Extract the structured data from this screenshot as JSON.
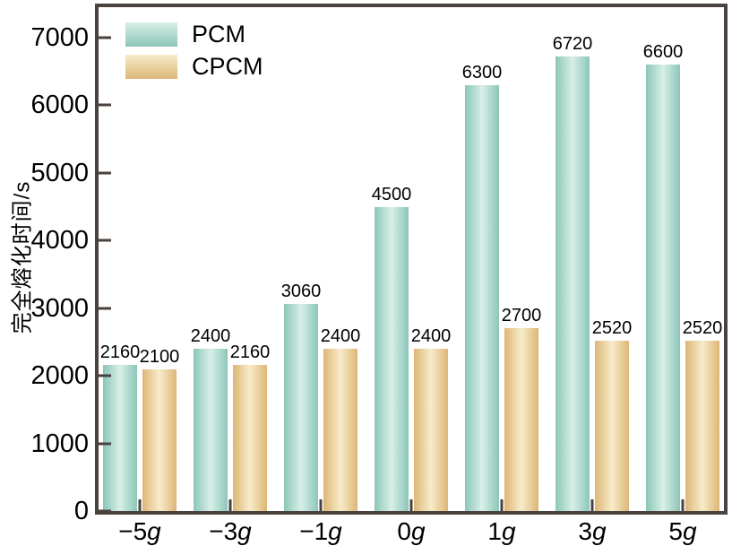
{
  "frame_color": "#49423e",
  "text_color": "#000000",
  "chart_data": {
    "type": "bar",
    "title": "",
    "xlabel": "",
    "ylabel": "完全熔化时间/s",
    "categories": [
      "−5g",
      "−3g",
      "−1g",
      "0g",
      "1g",
      "3g",
      "5g"
    ],
    "x_prefixes": [
      "−5",
      "−3",
      "−1",
      "0",
      "1",
      "3",
      "5"
    ],
    "x_unit": "g",
    "series": [
      {
        "name": "PCM",
        "values": [
          2160,
          2400,
          3060,
          4500,
          6300,
          6720,
          6600
        ],
        "color_edge": "#8cc6b9",
        "color_mid": "#d7efe7"
      },
      {
        "name": "CPCM",
        "values": [
          2100,
          2160,
          2400,
          2400,
          2700,
          2520,
          2520
        ],
        "color_edge": "#ddb676",
        "color_mid": "#f7ecca"
      }
    ],
    "yticks": [
      0,
      1000,
      2000,
      3000,
      4000,
      5000,
      6000,
      7000
    ],
    "ylim": [
      0,
      7000
    ],
    "grid": false,
    "legend_position": "top-left",
    "data_labels": true
  }
}
